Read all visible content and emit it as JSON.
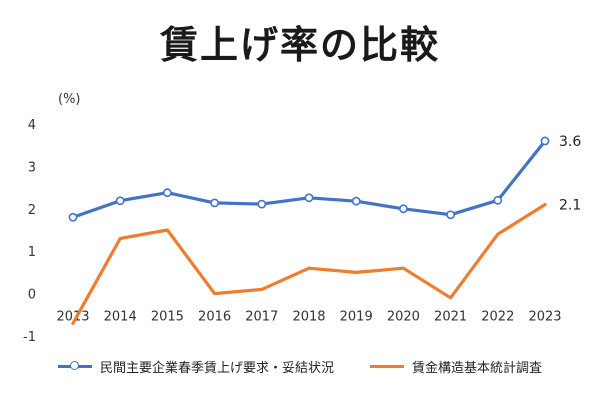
{
  "title": "賃上げ率の比較",
  "chart_data": {
    "type": "line",
    "unit_label": "(%)",
    "categories": [
      "2013",
      "2014",
      "2015",
      "2016",
      "2017",
      "2018",
      "2019",
      "2020",
      "2021",
      "2022",
      "2023"
    ],
    "ylim": [
      -1,
      4
    ],
    "yticks": [
      "-1",
      "0",
      "1",
      "2",
      "3",
      "4"
    ],
    "series": [
      {
        "name": "民間主要企業春季賃上げ要求・妥結状況",
        "color": "#4472C4",
        "markers": true,
        "values": [
          1.8,
          2.19,
          2.38,
          2.14,
          2.11,
          2.26,
          2.18,
          2.0,
          1.86,
          2.2,
          3.6
        ],
        "end_label": "3.6"
      },
      {
        "name": "賃金構造基本統計調査",
        "color": "#ED7D31",
        "markers": false,
        "values": [
          -0.7,
          1.3,
          1.5,
          0.0,
          0.1,
          0.6,
          0.5,
          0.6,
          -0.1,
          1.4,
          2.1
        ],
        "end_label": "2.1"
      }
    ]
  }
}
